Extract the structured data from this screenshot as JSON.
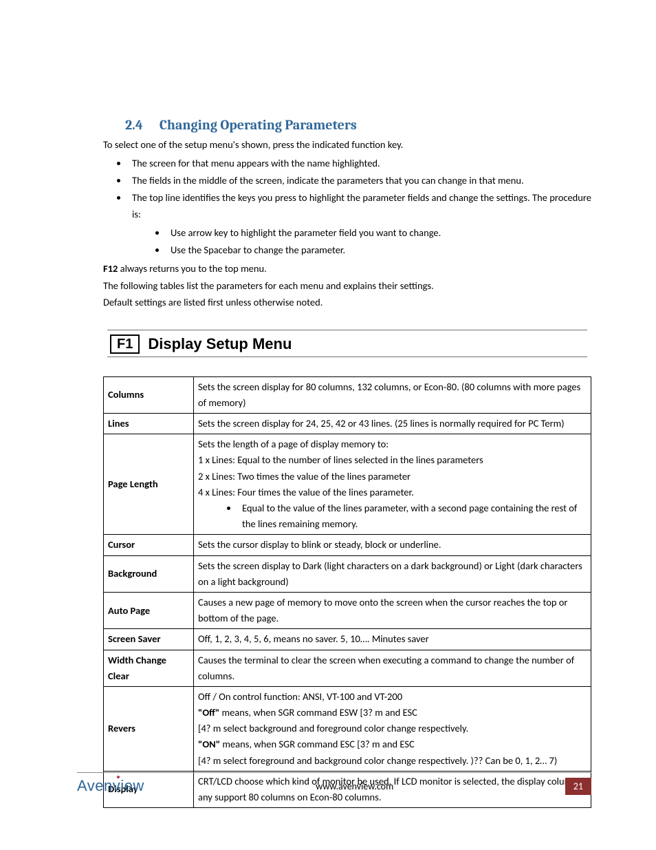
{
  "heading": {
    "number": "2.4",
    "title": "Changing Operating Parameters"
  },
  "intro": "To select one of the setup menu's shown, press the indicated function key.",
  "bullets1": [
    "The screen for that menu appears with the name highlighted.",
    "The fields in the middle of the screen, indicate the parameters that you can change in that menu.",
    "The top line identifies the keys you press to highlight the parameter fields and change the settings. The procedure is:"
  ],
  "bullets2": [
    "Use arrow key to highlight the parameter field you want to change.",
    "Use the Spacebar to change the parameter."
  ],
  "f12": {
    "key": "F12",
    "text": " always returns you to the top menu."
  },
  "after": [
    "The following tables list the parameters for each menu and explains their settings.",
    "Default settings are listed first unless otherwise noted."
  ],
  "menu": {
    "key": "F1",
    "title": "Display Setup Menu"
  },
  "table": [
    {
      "key": "Columns",
      "html": "Sets the screen display for 80 columns, 132 columns, or Econ-80. (80 columns with more pages of memory)"
    },
    {
      "key": "Lines",
      "html": "Sets the screen display for 24, 25, 42 or 43 lines. (25 lines is normally required for PC Term)"
    },
    {
      "key": "Page Length",
      "html": "Sets the length of a page of display memory to:<br>1 x Lines: Equal to the number of lines selected in the lines parameters<br>2 x Lines: Two times the value of the lines parameter<br>4 x Lines: Four times the value of the lines parameter.<ul class=\"cell-bullets\"><li>Equal to the value of the lines parameter, with a second page containing the rest of the lines remaining memory.</li></ul>"
    },
    {
      "key": "Cursor",
      "html": "Sets the cursor display to blink or steady, block or underline."
    },
    {
      "key": "Background",
      "html": "Sets the screen display to Dark (light characters on a dark background) or Light (dark characters on a light background)"
    },
    {
      "key": "Auto Page",
      "html": "Causes a new page of memory to move onto the screen when the cursor reaches the top or bottom of the page."
    },
    {
      "key": "Screen Saver",
      "html": "Off, 1, 2, 3, 4, 5, 6, means no saver. 5, 10…. Minutes saver"
    },
    {
      "key": "Width Change Clear",
      "html": "Causes the terminal to clear the screen when executing a command to change the number of columns."
    },
    {
      "key": "Revers",
      "html": "Off / On control function: ANSI, VT-100 and VT-200<br><span class=\"bold\">\"Off\"</span> means, when SGR command ESW [3? m and ESC<br>[4? m select background and foreground color change respectively.<br><span class=\"bold\">\"ON\"</span> means, when SGR command ESC [3? m and ESC<br>[4? m select foreground and background color change respectively. )?? Can be 0, 1, 2… 7)"
    },
    {
      "key": "Display",
      "html": "CRT/LCD choose which kind of monitor be used. If LCD monitor is selected, the display columns any support 80 columns on Econ-80 columns."
    }
  ],
  "footer": {
    "brand": "Avenview",
    "url": "www.avenview.com",
    "page": "21"
  },
  "colors": {
    "heading": "#2f6799",
    "pagenum_bg": "#8b2f2f",
    "pagenum_fg": "#ffffff"
  }
}
